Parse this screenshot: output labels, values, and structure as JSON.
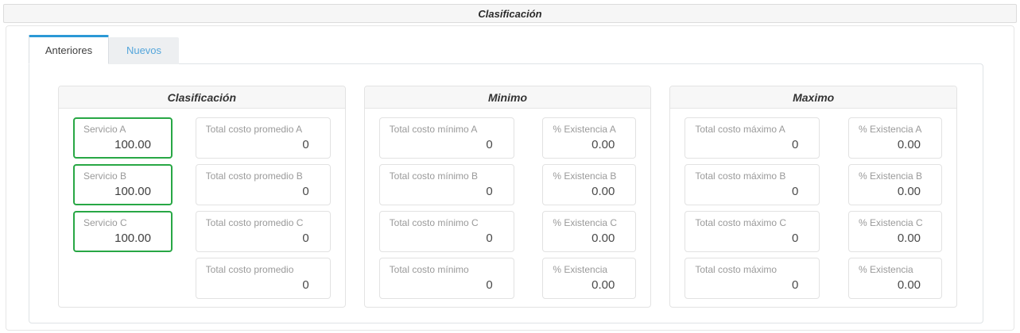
{
  "header": {
    "title": "Clasificación"
  },
  "tabs": {
    "anteriores": "Anteriores",
    "nuevos": "Nuevos"
  },
  "colors": {
    "accent_blue": "#2b99d6",
    "inactive_tab_text": "#55a6db",
    "success_green": "#28a745",
    "panel_header_bg": "#f7f7f7",
    "border_gray": "#e2e2e2",
    "label_gray": "#9a9a9a"
  },
  "panels": {
    "clasificacion": {
      "title": "Clasificación",
      "fields": {
        "servicio_a": {
          "label": "Servicio A",
          "value": "100.00"
        },
        "servicio_b": {
          "label": "Servicio B",
          "value": "100.00"
        },
        "servicio_c": {
          "label": "Servicio C",
          "value": "100.00"
        },
        "total_costo_promedio_a": {
          "label": "Total costo promedio A",
          "value": "0"
        },
        "total_costo_promedio_b": {
          "label": "Total costo promedio B",
          "value": "0"
        },
        "total_costo_promedio_c": {
          "label": "Total costo promedio C",
          "value": "0"
        },
        "total_costo_promedio": {
          "label": "Total costo promedio",
          "value": "0"
        }
      }
    },
    "minimo": {
      "title": "Minimo",
      "fields": {
        "total_costo_minimo_a": {
          "label": "Total costo mínimo A",
          "value": "0"
        },
        "total_costo_minimo_b": {
          "label": "Total costo mínimo B",
          "value": "0"
        },
        "total_costo_minimo_c": {
          "label": "Total costo mínimo C",
          "value": "0"
        },
        "total_costo_minimo": {
          "label": "Total costo mínimo",
          "value": "0"
        },
        "existencia_a": {
          "label": "% Existencia A",
          "value": "0.00"
        },
        "existencia_b": {
          "label": "% Existencia B",
          "value": "0.00"
        },
        "existencia_c": {
          "label": "% Existencia C",
          "value": "0.00"
        },
        "existencia": {
          "label": "% Existencia",
          "value": "0.00"
        }
      }
    },
    "maximo": {
      "title": "Maximo",
      "fields": {
        "total_costo_maximo_a": {
          "label": "Total costo máximo A",
          "value": "0"
        },
        "total_costo_maximo_b": {
          "label": "Total costo máximo B",
          "value": "0"
        },
        "total_costo_maximo_c": {
          "label": "Total costo máximo C",
          "value": "0"
        },
        "total_costo_maximo": {
          "label": "Total costo máximo",
          "value": "0"
        },
        "existencia_a": {
          "label": "% Existencia A",
          "value": "0.00"
        },
        "existencia_b": {
          "label": "% Existencia B",
          "value": "0.00"
        },
        "existencia_c": {
          "label": "% Existencia C",
          "value": "0.00"
        },
        "existencia": {
          "label": "% Existencia",
          "value": "0.00"
        }
      }
    }
  }
}
